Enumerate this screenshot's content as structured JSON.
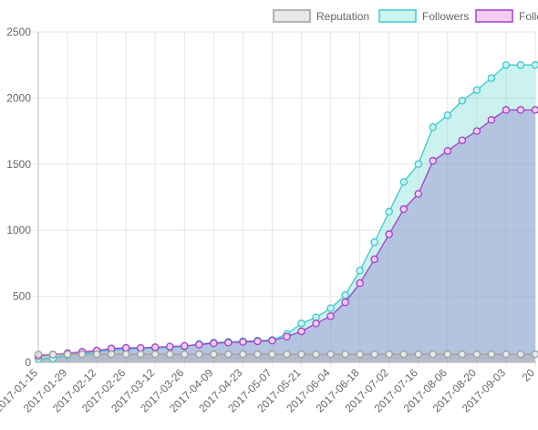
{
  "chart_data": {
    "type": "line",
    "title": "",
    "xlabel": "",
    "ylabel": "",
    "ylim": [
      0,
      2500
    ],
    "y_ticks": [
      0,
      500,
      1000,
      1500,
      2000,
      2500
    ],
    "grid": true,
    "legend_position": "top",
    "x_tick_labels": [
      "2017-01-15",
      "2017-01-29",
      "2017-02-12",
      "2017-02-26",
      "2017-03-12",
      "2017-03-26",
      "2017-04-09",
      "2017-04-23",
      "2017-05-07",
      "2017-05-21",
      "2017-06-04",
      "2017-06-18",
      "2017-07-02",
      "2017-07-16",
      "2017-08-06",
      "2017-08-20",
      "2017-09-03",
      "20"
    ],
    "x": [
      "2017-01-15",
      "2017-01-22",
      "2017-01-29",
      "2017-02-05",
      "2017-02-12",
      "2017-02-19",
      "2017-02-26",
      "2017-03-05",
      "2017-03-12",
      "2017-03-19",
      "2017-03-26",
      "2017-04-02",
      "2017-04-09",
      "2017-04-16",
      "2017-04-23",
      "2017-04-30",
      "2017-05-07",
      "2017-05-14",
      "2017-05-21",
      "2017-05-28",
      "2017-06-04",
      "2017-06-11",
      "2017-06-18",
      "2017-06-25",
      "2017-07-02",
      "2017-07-09",
      "2017-07-16",
      "2017-07-23",
      "2017-07-30",
      "2017-08-06",
      "2017-08-13",
      "2017-08-20",
      "2017-08-27",
      "2017-09-03",
      "2017-09-10"
    ],
    "series": [
      {
        "name": "Reputation",
        "color": "#9e9e9e",
        "fill": "rgba(180,180,180,0.45)",
        "legend_fill": "#e8e8e8",
        "values": [
          60,
          60,
          62,
          62,
          62,
          62,
          62,
          62,
          62,
          62,
          62,
          62,
          62,
          62,
          62,
          62,
          62,
          62,
          62,
          62,
          62,
          62,
          62,
          62,
          62,
          62,
          62,
          62,
          62,
          62,
          62,
          62,
          62,
          62,
          62
        ]
      },
      {
        "name": "Followers",
        "color": "#3cc9cc",
        "fill": "rgba(120,220,215,0.38)",
        "legend_fill": "#cdf3f2",
        "values": [
          25,
          30,
          55,
          68,
          80,
          95,
          100,
          105,
          110,
          115,
          120,
          140,
          150,
          155,
          160,
          165,
          170,
          215,
          295,
          340,
          410,
          510,
          695,
          910,
          1140,
          1365,
          1500,
          1780,
          1870,
          1980,
          2060,
          2150,
          2250,
          2250,
          2250
        ]
      },
      {
        "name": "Following",
        "legend_label": "Follo",
        "color": "#a040c8",
        "fill": "rgba(150,140,205,0.45)",
        "legend_fill": "#f4cdf4",
        "values": [
          50,
          60,
          70,
          80,
          90,
          105,
          110,
          110,
          115,
          120,
          125,
          135,
          145,
          150,
          155,
          160,
          165,
          195,
          235,
          295,
          350,
          455,
          600,
          780,
          970,
          1160,
          1275,
          1525,
          1600,
          1680,
          1750,
          1835,
          1910,
          1910,
          1910
        ]
      }
    ]
  }
}
